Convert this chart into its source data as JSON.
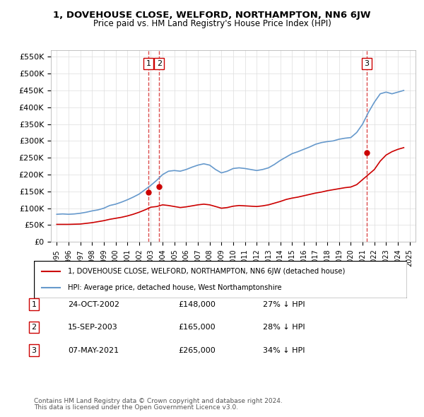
{
  "title": "1, DOVEHOUSE CLOSE, WELFORD, NORTHAMPTON, NN6 6JW",
  "subtitle": "Price paid vs. HM Land Registry's House Price Index (HPI)",
  "legend_line1": "1, DOVEHOUSE CLOSE, WELFORD, NORTHAMPTON, NN6 6JW (detached house)",
  "legend_line2": "HPI: Average price, detached house, West Northamptonshire",
  "footer1": "Contains HM Land Registry data © Crown copyright and database right 2024.",
  "footer2": "This data is licensed under the Open Government Licence v3.0.",
  "transactions": [
    {
      "num": 1,
      "date": "24-OCT-2002",
      "price": 148000,
      "pct": "27%",
      "dir": "↓",
      "x_year": 2002.81
    },
    {
      "num": 2,
      "date": "15-SEP-2003",
      "price": 165000,
      "pct": "28%",
      "dir": "↓",
      "x_year": 2003.71
    },
    {
      "num": 3,
      "date": "07-MAY-2021",
      "price": 265000,
      "pct": "34%",
      "dir": "↓",
      "x_year": 2021.35
    }
  ],
  "hpi_color": "#6699cc",
  "price_color": "#cc0000",
  "grid_color": "#dddddd",
  "ylim": [
    0,
    570000
  ],
  "yticks": [
    0,
    50000,
    100000,
    150000,
    200000,
    250000,
    300000,
    350000,
    400000,
    450000,
    500000,
    550000
  ],
  "xlim_start": 1994.5,
  "xlim_end": 2025.5,
  "hpi_data": {
    "years": [
      1995.0,
      1995.5,
      1996.0,
      1996.5,
      1997.0,
      1997.5,
      1998.0,
      1998.5,
      1999.0,
      1999.5,
      2000.0,
      2000.5,
      2001.0,
      2001.5,
      2002.0,
      2002.5,
      2003.0,
      2003.5,
      2004.0,
      2004.5,
      2005.0,
      2005.5,
      2006.0,
      2006.5,
      2007.0,
      2007.5,
      2008.0,
      2008.5,
      2009.0,
      2009.5,
      2010.0,
      2010.5,
      2011.0,
      2011.5,
      2012.0,
      2012.5,
      2013.0,
      2013.5,
      2014.0,
      2014.5,
      2015.0,
      2015.5,
      2016.0,
      2016.5,
      2017.0,
      2017.5,
      2018.0,
      2018.5,
      2019.0,
      2019.5,
      2020.0,
      2020.5,
      2021.0,
      2021.5,
      2022.0,
      2022.5,
      2023.0,
      2023.5,
      2024.0,
      2024.5
    ],
    "values": [
      82000,
      83000,
      82000,
      83000,
      85000,
      88000,
      92000,
      95000,
      100000,
      108000,
      112000,
      118000,
      125000,
      133000,
      142000,
      155000,
      168000,
      183000,
      200000,
      210000,
      212000,
      210000,
      215000,
      222000,
      228000,
      232000,
      228000,
      215000,
      205000,
      210000,
      218000,
      220000,
      218000,
      215000,
      212000,
      215000,
      220000,
      230000,
      242000,
      252000,
      262000,
      268000,
      275000,
      282000,
      290000,
      295000,
      298000,
      300000,
      305000,
      308000,
      310000,
      325000,
      350000,
      385000,
      415000,
      440000,
      445000,
      440000,
      445000,
      450000
    ]
  },
  "price_data": {
    "years": [
      1995.0,
      1995.5,
      1996.0,
      1996.5,
      1997.0,
      1997.5,
      1998.0,
      1998.5,
      1999.0,
      1999.5,
      2000.0,
      2000.5,
      2001.0,
      2001.5,
      2002.0,
      2002.5,
      2003.0,
      2003.5,
      2004.0,
      2004.5,
      2005.0,
      2005.5,
      2006.0,
      2006.5,
      2007.0,
      2007.5,
      2008.0,
      2008.5,
      2009.0,
      2009.5,
      2010.0,
      2010.5,
      2011.0,
      2011.5,
      2012.0,
      2012.5,
      2013.0,
      2013.5,
      2014.0,
      2014.5,
      2015.0,
      2015.5,
      2016.0,
      2016.5,
      2017.0,
      2017.5,
      2018.0,
      2018.5,
      2019.0,
      2019.5,
      2020.0,
      2020.5,
      2021.0,
      2021.5,
      2022.0,
      2022.5,
      2023.0,
      2023.5,
      2024.0,
      2024.5
    ],
    "values": [
      52000,
      52000,
      52000,
      52500,
      53000,
      55000,
      57000,
      60000,
      63000,
      67000,
      70000,
      73000,
      77000,
      82000,
      88000,
      95000,
      103000,
      105000,
      110000,
      108000,
      105000,
      102000,
      104000,
      107000,
      110000,
      112000,
      110000,
      105000,
      100000,
      102000,
      106000,
      108000,
      107000,
      106000,
      105000,
      107000,
      110000,
      115000,
      120000,
      126000,
      130000,
      133000,
      137000,
      141000,
      145000,
      148000,
      152000,
      155000,
      158000,
      161000,
      163000,
      170000,
      185000,
      200000,
      215000,
      240000,
      258000,
      268000,
      275000,
      280000
    ]
  }
}
